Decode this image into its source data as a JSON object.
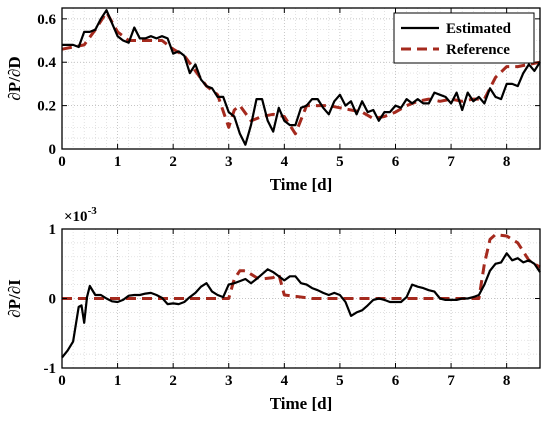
{
  "chart_data": [
    {
      "type": "line",
      "xlabel": "Time [d]",
      "ylabel": "∂P/∂D",
      "xlim": [
        0,
        8.6
      ],
      "ylim": [
        0,
        0.65
      ],
      "xticks": [
        0,
        1,
        2,
        3,
        4,
        5,
        6,
        7,
        8
      ],
      "xtick_labels": [
        "0",
        "1",
        "2",
        "3",
        "4",
        "5",
        "6",
        "7",
        "8"
      ],
      "yticks": [
        0,
        0.2,
        0.4,
        0.6
      ],
      "ytick_labels": [
        "0",
        "0.2",
        "0.4",
        "0.6"
      ],
      "grid": true,
      "legend": "top-right",
      "series": [
        {
          "name": "Estimated",
          "color": "#000000",
          "style": "solid",
          "x": [
            0.0,
            0.1,
            0.2,
            0.3,
            0.4,
            0.5,
            0.6,
            0.7,
            0.8,
            0.9,
            1.0,
            1.1,
            1.2,
            1.3,
            1.4,
            1.5,
            1.6,
            1.7,
            1.8,
            1.9,
            2.0,
            2.1,
            2.2,
            2.3,
            2.4,
            2.5,
            2.6,
            2.7,
            2.8,
            2.9,
            3.0,
            3.1,
            3.2,
            3.3,
            3.4,
            3.5,
            3.6,
            3.7,
            3.8,
            3.9,
            4.0,
            4.1,
            4.2,
            4.3,
            4.4,
            4.5,
            4.6,
            4.7,
            4.8,
            4.9,
            5.0,
            5.1,
            5.2,
            5.3,
            5.4,
            5.5,
            5.6,
            5.7,
            5.8,
            5.9,
            6.0,
            6.1,
            6.2,
            6.3,
            6.4,
            6.5,
            6.6,
            6.7,
            6.8,
            6.9,
            7.0,
            7.1,
            7.2,
            7.3,
            7.4,
            7.5,
            7.6,
            7.7,
            7.8,
            7.9,
            8.0,
            8.1,
            8.2,
            8.3,
            8.4,
            8.5,
            8.6
          ],
          "y": [
            0.48,
            0.48,
            0.48,
            0.47,
            0.54,
            0.54,
            0.55,
            0.6,
            0.64,
            0.58,
            0.52,
            0.5,
            0.49,
            0.56,
            0.51,
            0.51,
            0.52,
            0.51,
            0.52,
            0.51,
            0.44,
            0.45,
            0.43,
            0.35,
            0.39,
            0.32,
            0.29,
            0.28,
            0.24,
            0.24,
            0.17,
            0.15,
            0.07,
            0.02,
            0.11,
            0.23,
            0.23,
            0.13,
            0.08,
            0.19,
            0.13,
            0.11,
            0.11,
            0.19,
            0.2,
            0.23,
            0.23,
            0.19,
            0.16,
            0.22,
            0.25,
            0.2,
            0.22,
            0.16,
            0.22,
            0.17,
            0.18,
            0.13,
            0.17,
            0.17,
            0.2,
            0.19,
            0.23,
            0.21,
            0.23,
            0.21,
            0.21,
            0.26,
            0.25,
            0.24,
            0.21,
            0.26,
            0.18,
            0.26,
            0.22,
            0.24,
            0.21,
            0.28,
            0.24,
            0.23,
            0.3,
            0.3,
            0.29,
            0.35,
            0.39,
            0.36,
            0.4
          ]
        },
        {
          "name": "Reference",
          "color": "#a52a1e",
          "style": "dashed",
          "x": [
            0.0,
            0.2,
            0.4,
            0.6,
            0.8,
            1.0,
            1.2,
            1.4,
            1.6,
            1.8,
            2.0,
            2.2,
            2.4,
            2.6,
            2.8,
            3.0,
            3.1,
            3.2,
            3.4,
            3.6,
            3.8,
            4.0,
            4.2,
            4.4,
            4.6,
            4.8,
            5.0,
            5.2,
            5.4,
            5.6,
            5.8,
            6.0,
            6.2,
            6.4,
            6.6,
            6.8,
            7.0,
            7.2,
            7.4,
            7.6,
            7.8,
            8.0,
            8.2,
            8.4,
            8.6
          ],
          "y": [
            0.46,
            0.47,
            0.48,
            0.55,
            0.63,
            0.54,
            0.5,
            0.5,
            0.5,
            0.5,
            0.46,
            0.43,
            0.36,
            0.29,
            0.25,
            0.1,
            0.18,
            0.2,
            0.13,
            0.15,
            0.16,
            0.15,
            0.07,
            0.2,
            0.2,
            0.2,
            0.19,
            0.18,
            0.17,
            0.14,
            0.15,
            0.17,
            0.2,
            0.22,
            0.23,
            0.22,
            0.23,
            0.22,
            0.23,
            0.23,
            0.33,
            0.38,
            0.38,
            0.39,
            0.4
          ]
        }
      ]
    },
    {
      "type": "line",
      "xlabel": "Time [d]",
      "ylabel": "∂P/∂I",
      "exponent": "×10",
      "exponent_power": "-3",
      "xlim": [
        0,
        8.6
      ],
      "ylim": [
        -1,
        1
      ],
      "xticks": [
        0,
        1,
        2,
        3,
        4,
        5,
        6,
        7,
        8
      ],
      "xtick_labels": [
        "0",
        "1",
        "2",
        "3",
        "4",
        "5",
        "6",
        "7",
        "8"
      ],
      "yticks": [
        -1,
        0,
        1
      ],
      "ytick_labels": [
        "-1",
        "0",
        "1"
      ],
      "grid": true,
      "series": [
        {
          "name": "Estimated",
          "color": "#000000",
          "style": "solid",
          "x": [
            0.0,
            0.1,
            0.2,
            0.3,
            0.35,
            0.4,
            0.45,
            0.5,
            0.6,
            0.7,
            0.8,
            0.9,
            1.0,
            1.1,
            1.2,
            1.3,
            1.4,
            1.5,
            1.6,
            1.7,
            1.8,
            1.9,
            2.0,
            2.1,
            2.2,
            2.3,
            2.4,
            2.5,
            2.6,
            2.7,
            2.8,
            2.9,
            3.0,
            3.1,
            3.2,
            3.3,
            3.4,
            3.5,
            3.6,
            3.7,
            3.8,
            3.9,
            4.0,
            4.1,
            4.2,
            4.3,
            4.4,
            4.5,
            4.6,
            4.7,
            4.8,
            4.9,
            5.0,
            5.1,
            5.2,
            5.3,
            5.4,
            5.5,
            5.6,
            5.7,
            5.8,
            5.9,
            6.0,
            6.1,
            6.2,
            6.3,
            6.4,
            6.5,
            6.6,
            6.7,
            6.8,
            6.9,
            7.0,
            7.1,
            7.2,
            7.3,
            7.4,
            7.5,
            7.6,
            7.7,
            7.8,
            7.9,
            8.0,
            8.1,
            8.2,
            8.3,
            8.4,
            8.5,
            8.6
          ],
          "y": [
            -0.85,
            -0.75,
            -0.62,
            -0.12,
            -0.1,
            -0.35,
            0.02,
            0.18,
            0.05,
            0.05,
            0.0,
            -0.04,
            -0.05,
            -0.02,
            0.04,
            0.05,
            0.05,
            0.07,
            0.08,
            0.05,
            0.01,
            -0.08,
            -0.07,
            -0.08,
            -0.05,
            0.02,
            0.08,
            0.17,
            0.22,
            0.1,
            0.05,
            0.02,
            0.2,
            0.22,
            0.25,
            0.28,
            0.22,
            0.28,
            0.35,
            0.42,
            0.38,
            0.32,
            0.26,
            0.32,
            0.32,
            0.22,
            0.2,
            0.15,
            0.12,
            0.08,
            0.05,
            0.08,
            0.05,
            -0.05,
            -0.25,
            -0.2,
            -0.17,
            -0.1,
            -0.02,
            0.0,
            -0.02,
            -0.05,
            -0.05,
            -0.05,
            0.02,
            0.2,
            0.17,
            0.15,
            0.12,
            0.1,
            0.0,
            -0.02,
            -0.02,
            -0.02,
            0.0,
            0.0,
            0.02,
            0.05,
            0.2,
            0.4,
            0.5,
            0.52,
            0.65,
            0.55,
            0.58,
            0.52,
            0.55,
            0.5,
            0.38
          ]
        },
        {
          "name": "Reference",
          "color": "#a52a1e",
          "style": "dashed",
          "x": [
            0.0,
            0.5,
            1.0,
            1.5,
            2.0,
            2.5,
            3.0,
            3.1,
            3.2,
            3.3,
            3.4,
            3.5,
            3.6,
            3.8,
            3.9,
            4.0,
            4.5,
            5.0,
            5.5,
            6.0,
            6.5,
            7.0,
            7.4,
            7.5,
            7.6,
            7.7,
            7.8,
            8.0,
            8.2,
            8.4,
            8.6
          ],
          "y": [
            0,
            0,
            0,
            0,
            0,
            0,
            0,
            0.28,
            0.4,
            0.4,
            0.35,
            0.3,
            0.28,
            0.3,
            0.35,
            0.05,
            0,
            0,
            0,
            0,
            0,
            0,
            0,
            0.0,
            0.5,
            0.85,
            0.92,
            0.9,
            0.8,
            0.55,
            0.45
          ]
        }
      ]
    }
  ]
}
